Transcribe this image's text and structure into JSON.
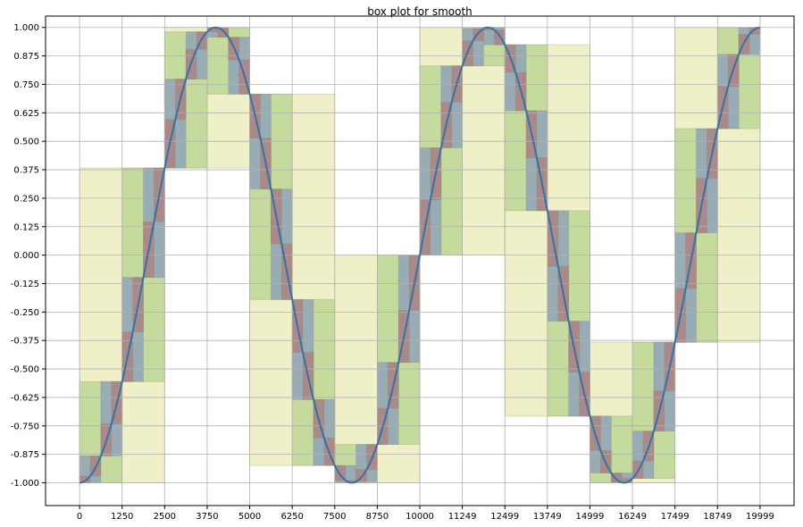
{
  "chart_data": {
    "type": "line",
    "title": "box plot for smooth",
    "xlabel": "",
    "ylabel": "",
    "xlim": [
      -1000,
      20999
    ],
    "ylim": [
      -1.1,
      1.05
    ],
    "grid": true,
    "x_ticks": [
      0,
      1250,
      2500,
      3750,
      5000,
      6250,
      7500,
      8750,
      10000,
      11249,
      12499,
      13749,
      14999,
      16249,
      17499,
      18749,
      19999
    ],
    "x_tick_labels": [
      "0",
      "1250",
      "2500",
      "3750",
      "5000",
      "6250",
      "7500",
      "8750",
      "10000",
      "11249",
      "12499",
      "13749",
      "14999",
      "16249",
      "17499",
      "18749",
      "19999"
    ],
    "y_ticks": [
      1.0,
      0.875,
      0.75,
      0.625,
      0.5,
      0.375,
      0.25,
      0.125,
      0.0,
      -0.125,
      -0.25,
      -0.375,
      -0.5,
      -0.625,
      -0.75,
      -0.875,
      -1.0
    ],
    "y_tick_labels": [
      "1.000",
      "0.875",
      "0.750",
      "0.625",
      "0.500",
      "0.375",
      "0.250",
      "0.125",
      "0.000",
      "-0.125",
      "-0.250",
      "-0.375",
      "-0.500",
      "-0.625",
      "-0.750",
      "-0.875",
      "-1.000"
    ],
    "series": [
      {
        "function": "-cos",
        "period": 8000,
        "x_start": 0,
        "x_end": 19999,
        "samples": 400
      }
    ],
    "box_levels": [
      {
        "width": 2500,
        "color": "#e9e9b0",
        "opacity": 0.7
      },
      {
        "width": 1250,
        "color": "#b5d48f",
        "opacity": 0.75
      },
      {
        "width": 625,
        "color": "#8fa3b8",
        "opacity": 0.85
      },
      {
        "width": 312.5,
        "color": "#b47a75",
        "opacity": 0.7
      }
    ],
    "colors": {
      "line": "#2f74a8",
      "grid": "#b0b0b0",
      "axis": "#000000"
    }
  }
}
